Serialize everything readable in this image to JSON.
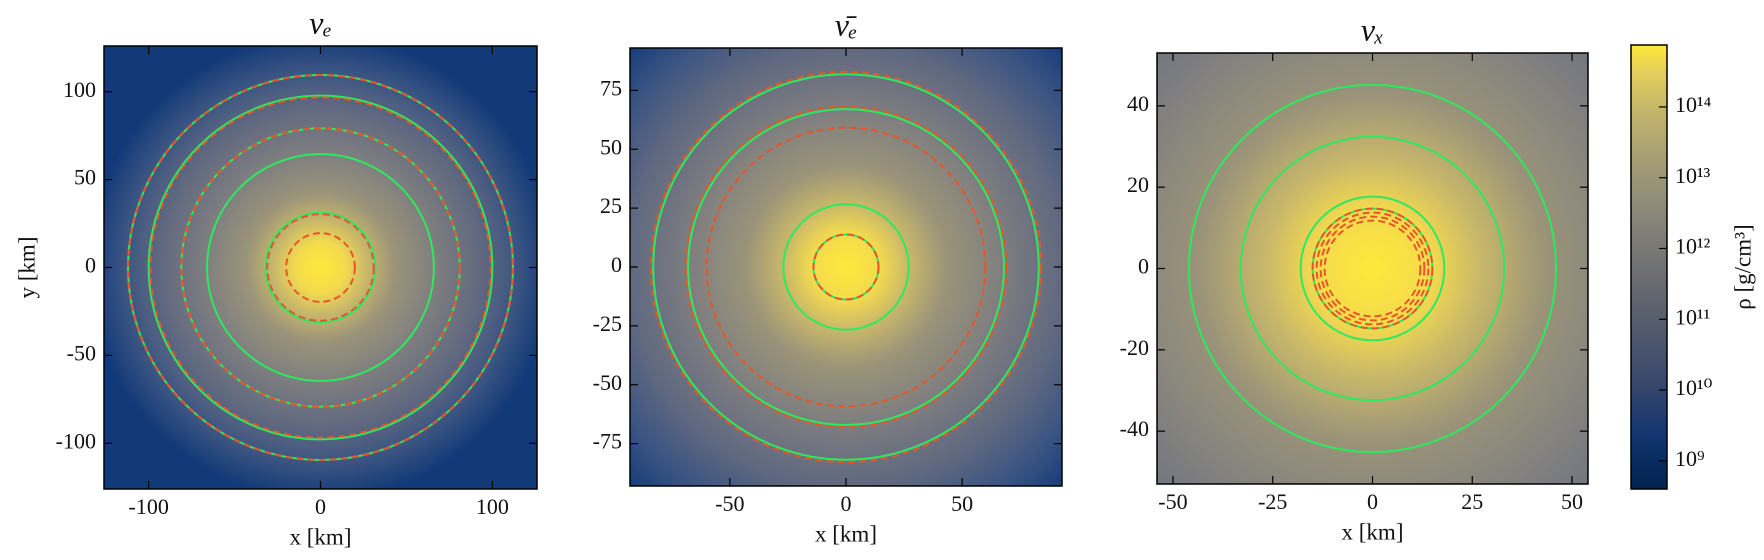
{
  "chart_data": [
    {
      "type": "contour",
      "title": "νₑ",
      "xlabel": "x [km]",
      "ylabel": "y [km]",
      "xlim": [
        -126,
        126
      ],
      "ylim": [
        -126,
        126
      ],
      "xticks": [
        -100,
        0,
        100
      ],
      "yticks": [
        -100,
        -50,
        0,
        50,
        100
      ],
      "series": [
        {
          "color": "#2bea5e",
          "dashed": false,
          "values": [
            32,
            66,
            81,
            100,
            112
          ]
        },
        {
          "color": "#e8552a",
          "dashed": true,
          "values": [
            20,
            31,
            81,
            99,
            112
          ]
        }
      ]
    },
    {
      "type": "contour",
      "title": "ν̄ₑ",
      "xlabel": "x [km]",
      "xlim": [
        -93,
        93
      ],
      "ylim": [
        -93,
        93
      ],
      "xticks": [
        -50,
        0,
        50
      ],
      "yticks": [
        -75,
        -50,
        -25,
        0,
        25,
        50,
        75
      ],
      "series": [
        {
          "color": "#2bea5e",
          "dashed": false,
          "values": [
            14,
            27,
            68,
            83
          ]
        },
        {
          "color": "#e8552a",
          "dashed": true,
          "values": [
            14,
            60,
            69,
            84
          ]
        }
      ]
    },
    {
      "type": "contour",
      "title": "νₓ",
      "xlabel": "x [km]",
      "xlim": [
        -54,
        54
      ],
      "ylim": [
        -53,
        53
      ],
      "xticks": [
        -50,
        -25,
        0,
        25,
        50
      ],
      "yticks": [
        -40,
        -20,
        0,
        20,
        40
      ],
      "series": [
        {
          "color": "#2bea5e",
          "dashed": false,
          "values": [
            15,
            18,
            33,
            46
          ]
        },
        {
          "color": "#e8552a",
          "dashed": true,
          "values": [
            12,
            13,
            14,
            15
          ]
        }
      ]
    },
    {
      "type": "colorbar",
      "label": "ρ [g/cm³]",
      "log": true,
      "clim": [
        400000000,
        750000000000000
      ],
      "ticks": [
        {
          "value": 1000000000,
          "label": "10⁹"
        },
        {
          "value": 10000000000,
          "label": "10¹⁰"
        },
        {
          "value": 100000000000,
          "label": "10¹¹"
        },
        {
          "value": 1000000000000,
          "label": "10¹²"
        },
        {
          "value": 10000000000000,
          "label": "10¹³"
        },
        {
          "value": 100000000000000,
          "label": "10¹⁴"
        }
      ]
    }
  ]
}
